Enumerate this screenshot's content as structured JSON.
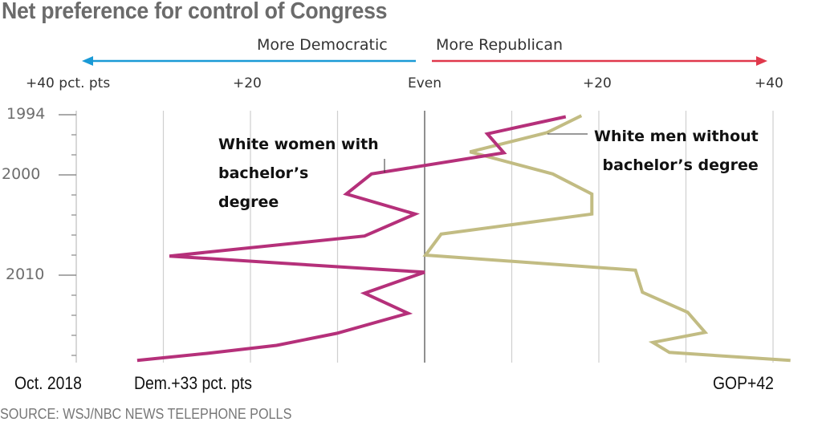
{
  "chart_data": {
    "type": "line",
    "orientation": "vertical-time",
    "title": "Net preference for control of Congress",
    "direction_labels": {
      "left": "More Democratic",
      "right": "More Republican"
    },
    "direction_colors": {
      "left": "#1a9ad6",
      "right": "#e0384b"
    },
    "x_tick_labels": [
      "+40 pct. pts",
      "+20",
      "Even",
      "+20",
      "+40"
    ],
    "x_ticks": [
      -40,
      -20,
      0,
      20,
      40
    ],
    "x_grid": [
      -40,
      -30,
      -20,
      -10,
      0,
      10,
      20,
      30,
      40
    ],
    "xlim": [
      -40,
      42
    ],
    "y_tick_labels": [
      "1994",
      "2000",
      "2010"
    ],
    "y_ticks": [
      1994,
      2000,
      2010
    ],
    "y_minor_ticks": [
      1996,
      1998,
      2002,
      2004,
      2006,
      2008,
      2012,
      2014,
      2016,
      2018
    ],
    "ylim": [
      1994,
      2018.5
    ],
    "bottom_labels": {
      "date": "Oct. 2018",
      "left_end": "Dem.+33 pct. pts",
      "right_end": "GOP+42"
    },
    "series": [
      {
        "name": "White women with bachelor's degree",
        "label_lines": [
          "White women with",
          "bachelor’s",
          "degree"
        ],
        "color": "#b5307a",
        "points": [
          [
            1994.2,
            16.2
          ],
          [
            1995.9,
            7.2
          ],
          [
            1997.8,
            9.1
          ],
          [
            1999.9,
            -6.1
          ],
          [
            2001.9,
            -9.0
          ],
          [
            2003.9,
            -1.1
          ],
          [
            2006.1,
            -6.9
          ],
          [
            2008.1,
            -29.3
          ],
          [
            2009.7,
            0.0
          ],
          [
            2011.8,
            -6.9
          ],
          [
            2013.8,
            -1.9
          ],
          [
            2015.8,
            -10.1
          ],
          [
            2017.0,
            -17.0
          ],
          [
            2017.8,
            -25.0
          ],
          [
            2018.5,
            -33.0
          ]
        ]
      },
      {
        "name": "White men without bachelor's degree",
        "label_lines": [
          "White men without",
          "bachelor’s degree"
        ],
        "color": "#c2bc83",
        "points": [
          [
            1994.1,
            18.0
          ],
          [
            1995.8,
            14.0
          ],
          [
            1997.7,
            5.2
          ],
          [
            1999.9,
            14.7
          ],
          [
            2001.9,
            19.2
          ],
          [
            2003.9,
            19.2
          ],
          [
            2005.9,
            1.9
          ],
          [
            2008.0,
            0.1
          ],
          [
            2009.5,
            24.2
          ],
          [
            2011.7,
            25.0
          ],
          [
            2013.7,
            30.2
          ],
          [
            2015.7,
            32.2
          ],
          [
            2016.7,
            26.2
          ],
          [
            2017.7,
            28.1
          ],
          [
            2018.5,
            42.0
          ]
        ]
      }
    ]
  },
  "source": "SOURCE: WSJ/NBC NEWS TELEPHONE POLLS"
}
